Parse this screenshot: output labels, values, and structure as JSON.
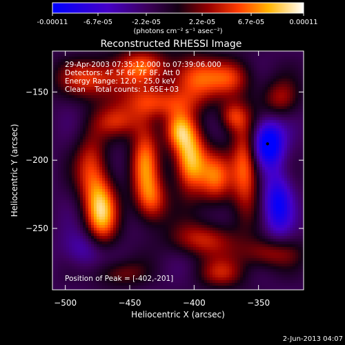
{
  "colorbar": {
    "tick_labels": [
      "-0.00011",
      "-6.7e-05",
      "-2.2e-05",
      "2.2e-05",
      "6.7e-05",
      "0.00011"
    ],
    "unit_label": "(photons cm⁻² s⁻¹ asec⁻²)",
    "range": [
      -0.00011,
      0.00011
    ]
  },
  "chart_data": {
    "type": "heatmap",
    "title": "Reconstructed RHESSI Image",
    "xlabel": "Heliocentric X (arcsec)",
    "ylabel": "Heliocentric Y (arcsec)",
    "xlim": [
      -510,
      -315
    ],
    "ylim": [
      -295,
      -120
    ],
    "x_ticks": [
      -500,
      -450,
      -400,
      -350
    ],
    "y_ticks": [
      -150,
      -200,
      -250
    ],
    "annotations": [
      "29-Apr-2003 07:35:12.000 to 07:39:06.000",
      "Detectors: 4F 5F 6F 7F 8F, Att 0",
      "Energy Range: 12.0 - 25.0 keV",
      "Clean    Total counts: 1.65E+03"
    ],
    "peak_label": "Position of Peak = [-402,-201]",
    "peak": [
      -402,
      -201
    ],
    "min_marker": [
      -343,
      -188
    ],
    "blobs": [
      {
        "x": -475,
        "y": -140,
        "amp": 7e-05,
        "sx": 22,
        "sy": 10
      },
      {
        "x": -440,
        "y": -130,
        "amp": 6e-05,
        "sx": 14,
        "sy": 9
      },
      {
        "x": -400,
        "y": -140,
        "amp": 8e-05,
        "sx": 14,
        "sy": 12
      },
      {
        "x": -430,
        "y": -158,
        "amp": 6e-05,
        "sx": 22,
        "sy": 8
      },
      {
        "x": -370,
        "y": -140,
        "amp": 6e-05,
        "sx": 12,
        "sy": 10
      },
      {
        "x": -458,
        "y": -172,
        "amp": 5e-05,
        "sx": 14,
        "sy": 8
      },
      {
        "x": -480,
        "y": -205,
        "amp": 6e-05,
        "sx": 9,
        "sy": 20
      },
      {
        "x": -472,
        "y": -238,
        "amp": 0.0001,
        "sx": 9,
        "sy": 18
      },
      {
        "x": -438,
        "y": -200,
        "amp": 8e-05,
        "sx": 8,
        "sy": 22
      },
      {
        "x": -432,
        "y": -230,
        "amp": 6e-05,
        "sx": 9,
        "sy": 12
      },
      {
        "x": -403,
        "y": -200,
        "amp": 0.00011,
        "sx": 9,
        "sy": 17
      },
      {
        "x": -412,
        "y": -178,
        "amp": 7e-05,
        "sx": 8,
        "sy": 10
      },
      {
        "x": -383,
        "y": -213,
        "amp": 7e-05,
        "sx": 9,
        "sy": 14
      },
      {
        "x": -360,
        "y": -205,
        "amp": 9e-05,
        "sx": 8,
        "sy": 22
      },
      {
        "x": -370,
        "y": -168,
        "amp": 6e-05,
        "sx": 8,
        "sy": 8
      },
      {
        "x": -393,
        "y": -258,
        "amp": 6e-05,
        "sx": 18,
        "sy": 9
      },
      {
        "x": -343,
        "y": -268,
        "amp": 5e-05,
        "sx": 18,
        "sy": 8
      },
      {
        "x": -378,
        "y": -283,
        "amp": 5e-05,
        "sx": 14,
        "sy": 8
      },
      {
        "x": -458,
        "y": -283,
        "amp": 4e-05,
        "sx": 14,
        "sy": 7
      },
      {
        "x": -333,
        "y": -155,
        "amp": 5e-05,
        "sx": 10,
        "sy": 10
      },
      {
        "x": -343,
        "y": -188,
        "amp": -0.00011,
        "sx": 9,
        "sy": 12
      },
      {
        "x": -335,
        "y": -232,
        "amp": -8e-05,
        "sx": 8,
        "sy": 16
      },
      {
        "x": -485,
        "y": -265,
        "amp": -4e-05,
        "sx": 12,
        "sy": 10
      }
    ]
  },
  "timestamp": "2-Jun-2013 04:07"
}
